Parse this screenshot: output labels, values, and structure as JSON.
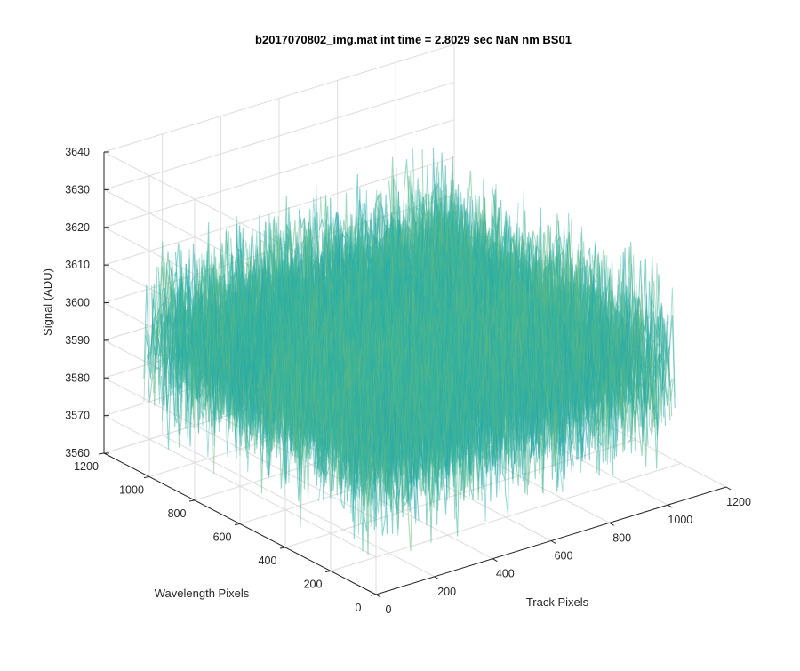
{
  "chart_data": {
    "type": "surface",
    "title": "b2017070802_img.mat int time = 2.8029 sec  NaN nm BS01",
    "xlabel": "Track Pixels",
    "ylabel": "Wavelength Pixels",
    "zlabel": "Signal (ADU)",
    "xlim": [
      0,
      1200
    ],
    "ylim": [
      0,
      1200
    ],
    "zlim": [
      3560,
      3640
    ],
    "x_ticks": [
      "0",
      "200",
      "400",
      "600",
      "800",
      "1000",
      "1200"
    ],
    "y_ticks": [
      "0",
      "200",
      "400",
      "600",
      "800",
      "1000",
      "1200"
    ],
    "z_ticks": [
      "3560",
      "3570",
      "3580",
      "3590",
      "3600",
      "3610",
      "3620",
      "3630",
      "3640"
    ],
    "grid": true,
    "colormap": "parula",
    "surface_extent": {
      "x": [
        0,
        1024
      ],
      "y": [
        0,
        1024
      ]
    },
    "signal_mean": 3597,
    "signal_range": [
      3565,
      3625
    ],
    "colors": {
      "low": "#1f7fc9",
      "mid": "#2bb4a4",
      "high": "#c7c145",
      "axis": "#262626",
      "grid": "#dcdcdc"
    }
  }
}
